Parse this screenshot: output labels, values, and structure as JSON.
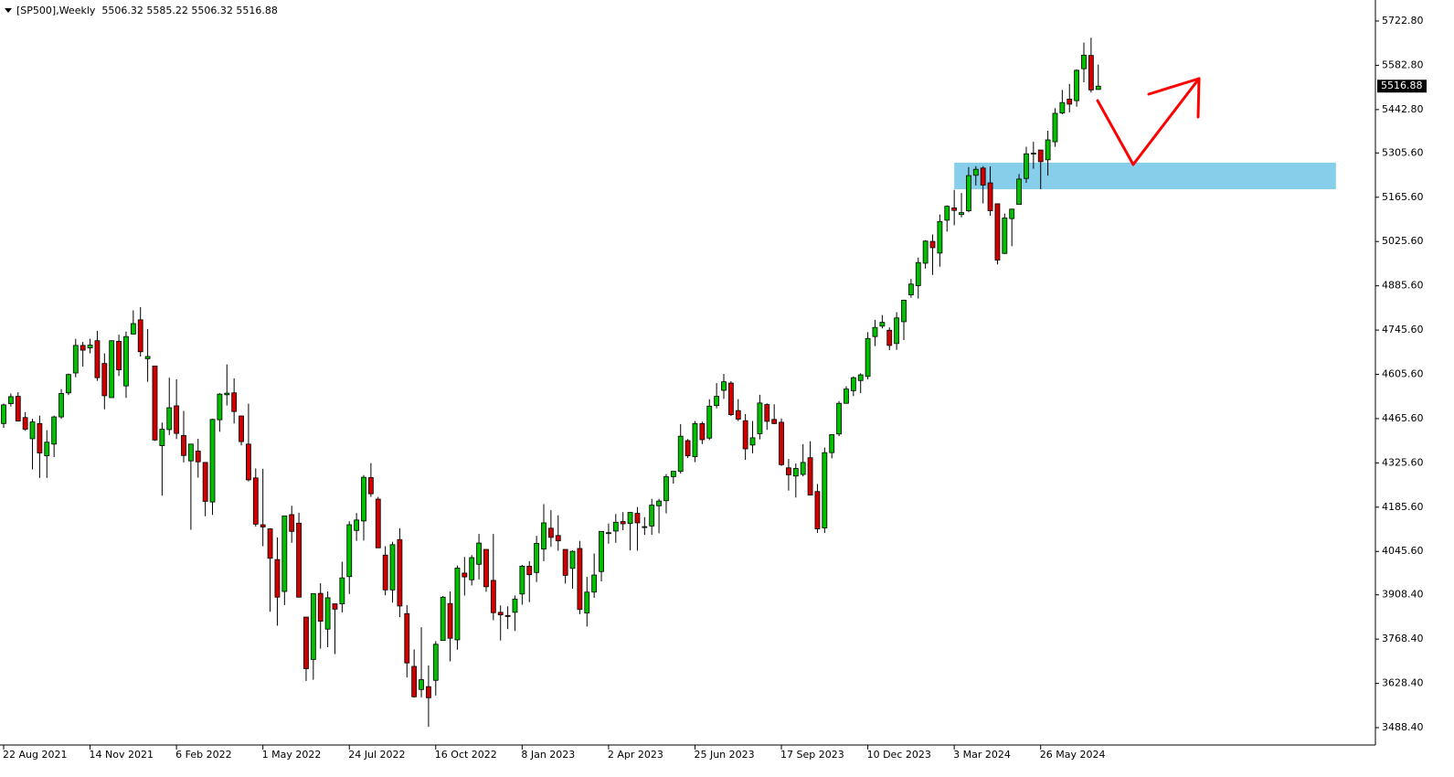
{
  "chart_data": {
    "type": "candlestick",
    "header": "[SP500],Weekly  5506.32 5585.22 5506.32 5516.88",
    "categories": [
      "22 Aug 2021",
      null,
      null,
      null,
      null,
      null,
      null,
      null,
      null,
      null,
      null,
      null,
      "14 Nov 2021",
      null,
      null,
      null,
      null,
      null,
      null,
      null,
      null,
      null,
      null,
      null,
      "6 Feb 2022",
      null,
      null,
      null,
      null,
      null,
      null,
      null,
      null,
      null,
      null,
      null,
      "1 May 2022",
      null,
      null,
      null,
      null,
      null,
      null,
      null,
      null,
      null,
      null,
      null,
      "24 Jul 2022",
      null,
      null,
      null,
      null,
      null,
      null,
      null,
      null,
      null,
      null,
      null,
      "16 Oct 2022",
      null,
      null,
      null,
      null,
      null,
      null,
      null,
      null,
      null,
      null,
      null,
      "8 Jan 2023",
      null,
      null,
      null,
      null,
      null,
      null,
      null,
      null,
      null,
      null,
      null,
      "2 Apr 2023",
      null,
      null,
      null,
      null,
      null,
      null,
      null,
      null,
      null,
      null,
      null,
      "25 Jun 2023",
      null,
      null,
      null,
      null,
      null,
      null,
      null,
      null,
      null,
      null,
      null,
      "17 Sep 2023",
      null,
      null,
      null,
      null,
      null,
      null,
      null,
      null,
      null,
      null,
      null,
      "10 Dec 2023",
      null,
      null,
      null,
      null,
      null,
      null,
      null,
      null,
      null,
      null,
      null,
      "3 Mar 2024",
      null,
      null,
      null,
      null,
      null,
      null,
      null,
      null,
      null,
      null,
      null,
      "26 May 2024",
      null,
      null,
      null,
      null,
      null,
      null,
      null,
      null
    ],
    "open": [
      4450,
      4513,
      4536,
      4469,
      4402,
      4450,
      4348,
      4385,
      4471,
      4547,
      4610,
      4697,
      4689,
      4712,
      4640,
      4532,
      4710,
      4569,
      4733,
      4778,
      4655,
      4632,
      4380,
      4431,
      4506,
      4412,
      4332,
      4363,
      4327,
      4202,
      4462,
      4541,
      4547,
      4474,
      4385,
      4278,
      4130,
      4117,
      4020,
      3919,
      4162,
      4135,
      3838,
      3704,
      3913,
      3800,
      3880,
      3880,
      3966,
      4112,
      4142,
      4279,
      4211,
      4034,
      3924,
      4083,
      3849,
      3682,
      3609,
      3618,
      3638,
      3764,
      3881,
      3766,
      3977,
      3956,
      4005,
      4052,
      3954,
      3853,
      3843,
      3853,
      3911,
      3999,
      3979,
      4053,
      4119,
      4096,
      4052,
      3992,
      4055,
      3851,
      3917,
      3982,
      4102,
      4110,
      4140,
      4134,
      4166,
      4124,
      4126,
      4190,
      4206,
      4282,
      4299,
      4396,
      4345,
      4450,
      4404,
      4507,
      4555,
      4578,
      4491,
      4459,
      4382,
      4418,
      4510,
      4463,
      4454,
      4310,
      4284,
      4289,
      4342,
      4235,
      4120,
      4358,
      4417,
      4514,
      4554,
      4586,
      4599,
      4725,
      4758,
      4745,
      4703,
      4772,
      4857,
      4886,
      4957,
      5026,
      4989,
      5093,
      5132,
      5111,
      5123,
      5235,
      5258,
      5211,
      5145,
      4988,
      5098,
      5143,
      5225,
      5305,
      5315,
      5284,
      5341,
      5432,
      5476,
      5471,
      5572,
      5614,
      5506.32
    ],
    "high": [
      4513,
      4545,
      4549,
      4486,
      4465,
      4475,
      4429,
      4475,
      4559,
      4608,
      4718,
      4708,
      4718,
      4743,
      4672,
      4713,
      4731,
      4741,
      4808,
      4818,
      4749,
      4632,
      4453,
      4595,
      4590,
      4490,
      4385,
      4402,
      4327,
      4465,
      4546,
      4637,
      4593,
      4475,
      4513,
      4308,
      4307,
      4119,
      4090,
      4158,
      4190,
      4168,
      3839,
      3913,
      3945,
      3919,
      3880,
      4013,
      4141,
      4167,
      4287,
      4325,
      4218,
      4062,
      4076,
      4119,
      3876,
      3736,
      3806,
      3685,
      3762,
      3905,
      3919,
      4001,
      4028,
      4034,
      4101,
      4052,
      4101,
      3875,
      3872,
      3906,
      4003,
      4015,
      4095,
      4195,
      4176,
      4160,
      4052,
      4049,
      4079,
      3965,
      4039,
      4110,
      4134,
      4164,
      4170,
      4170,
      4186,
      4154,
      4212,
      4212,
      4290,
      4299,
      4448,
      4401,
      4458,
      4456,
      4527,
      4578,
      4607,
      4584,
      4527,
      4480,
      4458,
      4541,
      4514,
      4511,
      4466,
      4338,
      4324,
      4385,
      4394,
      4259,
      4374,
      4415,
      4521,
      4568,
      4599,
      4609,
      4739,
      4778,
      4793,
      4754,
      4802,
      4842,
      4907,
      4975,
      5030,
      5048,
      5111,
      5140,
      5189,
      5179,
      5261,
      5264,
      5264,
      5263,
      5146,
      5114,
      5128,
      5239,
      5325,
      5341,
      5315,
      5376,
      5447,
      5505,
      5524,
      5570,
      5655,
      5670,
      5585.22
    ],
    "low": [
      4436,
      4504,
      4457,
      4427,
      4305,
      4278,
      4278,
      4344,
      4465,
      4540,
      4596,
      4630,
      4672,
      4585,
      4495,
      4532,
      4600,
      4531,
      4733,
      4662,
      4582,
      4395,
      4222,
      4414,
      4401,
      4327,
      4114,
      4279,
      4157,
      4161,
      4424,
      4507,
      4450,
      4381,
      4267,
      4124,
      4062,
      3855,
      3811,
      3876,
      4073,
      3900,
      3636,
      3640,
      3738,
      3743,
      3721,
      3853,
      3911,
      4079,
      4080,
      4218,
      4057,
      3907,
      3884,
      3838,
      3647,
      3584,
      3584,
      3491,
      3590,
      3764,
      3698,
      3735,
      3906,
      3938,
      3957,
      3918,
      3828,
      3764,
      3800,
      3794,
      3877,
      3885,
      3949,
      4015,
      4060,
      4048,
      3944,
      3928,
      3847,
      3808,
      3899,
      3951,
      4070,
      4073,
      4113,
      4049,
      4048,
      4098,
      4098,
      4103,
      4166,
      4260,
      4292,
      4341,
      4328,
      4385,
      4398,
      4498,
      4528,
      4474,
      4458,
      4335,
      4356,
      4400,
      4430,
      4448,
      4316,
      4238,
      4216,
      4283,
      4223,
      4104,
      4104,
      4340,
      4410,
      4514,
      4537,
      4546,
      4590,
      4695,
      4751,
      4682,
      4683,
      4714,
      4848,
      4845,
      4940,
      4920,
      4946,
      5057,
      5077,
      5102,
      5118,
      5203,
      5146,
      5107,
      4953,
      4986,
      5011,
      5142,
      5211,
      5256,
      5191,
      5234,
      5325,
      5428,
      5434,
      5452,
      5529,
      5497,
      5506.32
    ],
    "close": [
      4509,
      4535,
      4458,
      4432,
      4455,
      4357,
      4391,
      4471,
      4545,
      4605,
      4697,
      4682,
      4698,
      4595,
      4538,
      4712,
      4620,
      4725,
      4766,
      4677,
      4662,
      4398,
      4432,
      4500,
      4419,
      4349,
      4385,
      4329,
      4204,
      4463,
      4543,
      4546,
      4488,
      4393,
      4272,
      4132,
      4123,
      4024,
      3901,
      4158,
      4109,
      3901,
      3675,
      3912,
      3825,
      3899,
      3863,
      3962,
      4130,
      4145,
      4280,
      4228,
      4057,
      3924,
      4067,
      3873,
      3693,
      3586,
      3640,
      3583,
      3752,
      3901,
      3771,
      3993,
      3965,
      4026,
      4072,
      3934,
      3852,
      3845,
      3840,
      3895,
      3999,
      3972,
      4071,
      4136,
      4090,
      4079,
      3970,
      4046,
      3862,
      3917,
      3971,
      4109,
      4105,
      4138,
      4133,
      4169,
      4136,
      4124,
      4192,
      4205,
      4282,
      4299,
      4410,
      4348,
      4450,
      4399,
      4505,
      4536,
      4582,
      4478,
      4464,
      4370,
      4405,
      4515,
      4457,
      4450,
      4320,
      4288,
      4308,
      4327,
      4224,
      4117,
      4358,
      4415,
      4514,
      4559,
      4595,
      4604,
      4719,
      4754,
      4770,
      4697,
      4784,
      4840,
      4891,
      4959,
      5027,
      5006,
      5089,
      5137,
      5124,
      5117,
      5234,
      5254,
      5204,
      5123,
      4967,
      5100,
      5128,
      5223,
      5303,
      5305,
      5278,
      5347,
      5431,
      5465,
      5460,
      5567,
      5615,
      5505,
      5516.88
    ],
    "up_color": "#00c000",
    "down_color": "#d00000",
    "ylim": [
      3433.5,
      5789.3
    ],
    "yticks": [
      {
        "value": 5722.8,
        "label": "5722.80"
      },
      {
        "value": 5582.8,
        "label": "5582.80"
      },
      {
        "value": 5442.8,
        "label": "5442.80"
      },
      {
        "value": 5305.6,
        "label": "5305.60"
      },
      {
        "value": 5165.6,
        "label": "5165.60"
      },
      {
        "value": 5025.6,
        "label": "5025.60"
      },
      {
        "value": 4885.6,
        "label": "4885.60"
      },
      {
        "value": 4745.6,
        "label": "4745.60"
      },
      {
        "value": 4605.6,
        "label": "4605.60"
      },
      {
        "value": 4465.6,
        "label": "4465.60"
      },
      {
        "value": 4325.6,
        "label": "4325.60"
      },
      {
        "value": 4185.6,
        "label": "4185.60"
      },
      {
        "value": 4045.6,
        "label": "4045.60"
      },
      {
        "value": 3908.4,
        "label": "3908.40"
      },
      {
        "value": 3768.4,
        "label": "3768.40"
      },
      {
        "value": 3628.4,
        "label": "3628.40"
      },
      {
        "value": 3488.4,
        "label": "3488.40"
      }
    ],
    "grid": false,
    "zone": {
      "low": 5191,
      "high": 5275,
      "start": 132,
      "end": 185,
      "color": "#87ceeb"
    }
  }
}
